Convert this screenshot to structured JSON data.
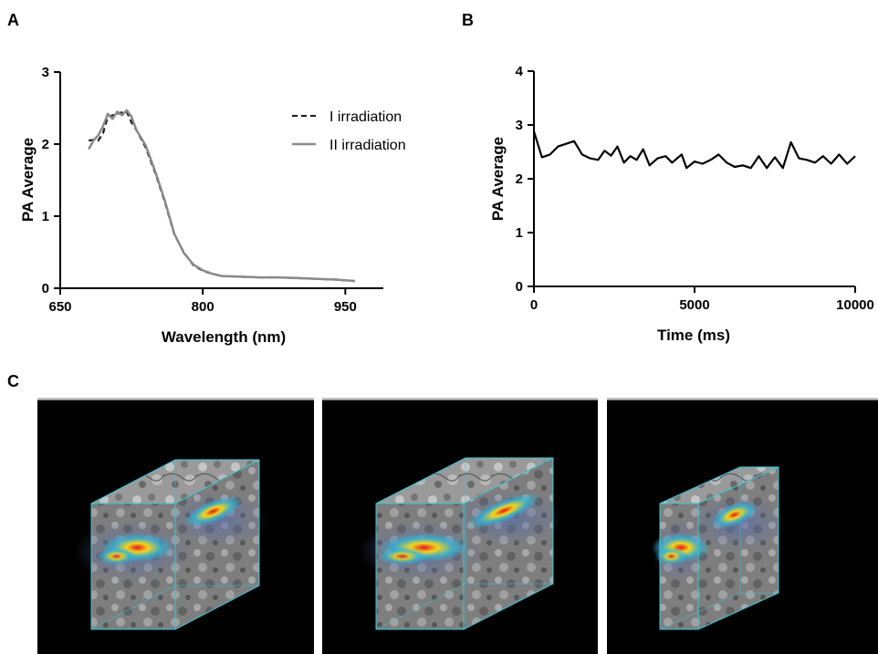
{
  "panels": {
    "a": "A",
    "b": "B",
    "c": "C"
  },
  "chart_data": [
    {
      "type": "line",
      "xlabel": "Wavelength (nm)",
      "ylabel": "PA Average",
      "xlim": [
        650,
        990
      ],
      "ylim": [
        0,
        3
      ],
      "xticks": [
        650,
        800,
        950
      ],
      "yticks": [
        0,
        1,
        2,
        3
      ],
      "legend_position": "top-right",
      "series": [
        {
          "name": "I irradiation",
          "style": "dashed",
          "color": "#1a1a1a",
          "x": [
            680,
            685,
            690,
            695,
            700,
            705,
            710,
            715,
            720,
            725,
            730,
            740,
            750,
            760,
            770,
            780,
            790,
            800,
            810,
            820,
            840,
            860,
            880,
            900,
            920,
            940,
            960
          ],
          "y": [
            2.05,
            2.06,
            2.05,
            2.15,
            2.38,
            2.4,
            2.42,
            2.44,
            2.45,
            2.3,
            2.2,
            1.95,
            1.6,
            1.2,
            0.75,
            0.5,
            0.32,
            0.24,
            0.2,
            0.17,
            0.16,
            0.15,
            0.15,
            0.14,
            0.13,
            0.12,
            0.1
          ]
        },
        {
          "name": "II irradiation",
          "style": "solid",
          "color": "#8a8a8a",
          "x": [
            680,
            685,
            690,
            695,
            700,
            705,
            710,
            715,
            720,
            725,
            730,
            740,
            750,
            760,
            770,
            780,
            790,
            800,
            810,
            820,
            840,
            860,
            880,
            900,
            920,
            940,
            960
          ],
          "y": [
            1.93,
            2.05,
            2.12,
            2.25,
            2.42,
            2.35,
            2.45,
            2.4,
            2.47,
            2.38,
            2.2,
            1.98,
            1.62,
            1.22,
            0.76,
            0.49,
            0.33,
            0.25,
            0.2,
            0.17,
            0.16,
            0.15,
            0.15,
            0.14,
            0.13,
            0.12,
            0.1
          ]
        }
      ]
    },
    {
      "type": "line",
      "xlabel": "Time (ms)",
      "ylabel": "PA Average",
      "xlim": [
        0,
        10000
      ],
      "ylim": [
        0,
        4
      ],
      "xticks": [
        0,
        5000,
        10000
      ],
      "yticks": [
        0,
        1,
        2,
        3,
        4
      ],
      "series": [
        {
          "color": "#000000",
          "x": [
            0,
            250,
            500,
            750,
            1000,
            1250,
            1500,
            1750,
            2000,
            2200,
            2400,
            2600,
            2800,
            3000,
            3200,
            3400,
            3600,
            3850,
            4100,
            4300,
            4600,
            4750,
            5000,
            5250,
            5500,
            5750,
            6000,
            6250,
            6500,
            6750,
            7000,
            7250,
            7500,
            7750,
            8000,
            8250,
            8500,
            8750,
            9000,
            9250,
            9500,
            9750,
            10000
          ],
          "y": [
            2.88,
            2.4,
            2.45,
            2.6,
            2.65,
            2.7,
            2.45,
            2.38,
            2.35,
            2.52,
            2.43,
            2.6,
            2.3,
            2.42,
            2.35,
            2.55,
            2.25,
            2.38,
            2.42,
            2.3,
            2.45,
            2.2,
            2.32,
            2.28,
            2.35,
            2.45,
            2.3,
            2.22,
            2.25,
            2.2,
            2.42,
            2.2,
            2.4,
            2.2,
            2.68,
            2.38,
            2.35,
            2.3,
            2.42,
            2.28,
            2.45,
            2.28,
            2.42
          ]
        }
      ]
    }
  ],
  "images": [
    {
      "name": "3d-render-1",
      "hotspot_scale": 1.0
    },
    {
      "name": "3d-render-2",
      "hotspot_scale": 1.25
    },
    {
      "name": "3d-render-3",
      "hotspot_scale": 0.8
    }
  ],
  "colors": {
    "image_bg": "#000000",
    "box_edge": "#39c6d6",
    "tissue_light": "#c8c8c8",
    "tissue_dark": "#4a4a4a",
    "tissue_blue": "#5b6fa8",
    "signal_hot": "#e3161c",
    "signal_warm": "#f3d51d",
    "signal_cool": "#31b4d6"
  }
}
